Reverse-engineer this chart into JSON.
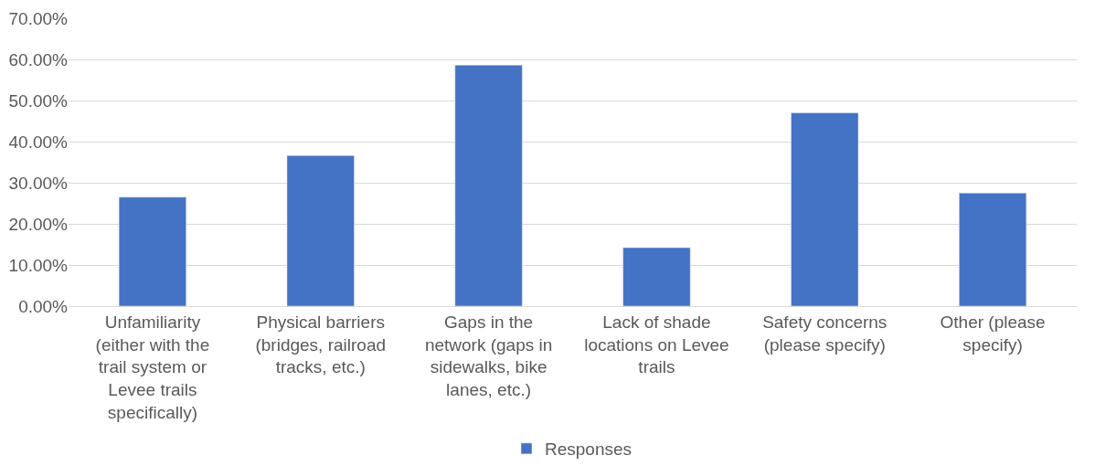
{
  "chart_data": {
    "type": "bar",
    "categories": [
      "Unfamiliarity (either with the trail system or Levee trails specifically)",
      "Physical barriers (bridges, railroad tracks, etc.)",
      "Gaps in the network (gaps in sidewalks, bike lanes, etc.)",
      "Lack of shade locations on Levee trails",
      "Safety concerns (please specify)",
      "Other (please specify)"
    ],
    "series": [
      {
        "name": "Responses",
        "color": "#4472c4",
        "values": [
          26.5,
          36.6,
          58.6,
          14.2,
          47.0,
          27.5
        ]
      }
    ],
    "ylim": [
      0,
      70
    ],
    "yticks": [
      {
        "value": 0,
        "label": "0.00%"
      },
      {
        "value": 10,
        "label": "10.00%"
      },
      {
        "value": 20,
        "label": "20.00%"
      },
      {
        "value": 30,
        "label": "30.00%"
      },
      {
        "value": 40,
        "label": "40.00%"
      },
      {
        "value": 50,
        "label": "50.00%"
      },
      {
        "value": 60,
        "label": "60.00%"
      },
      {
        "value": 70,
        "label": "70.00%"
      }
    ],
    "grid": "y",
    "legend": "bottom"
  }
}
